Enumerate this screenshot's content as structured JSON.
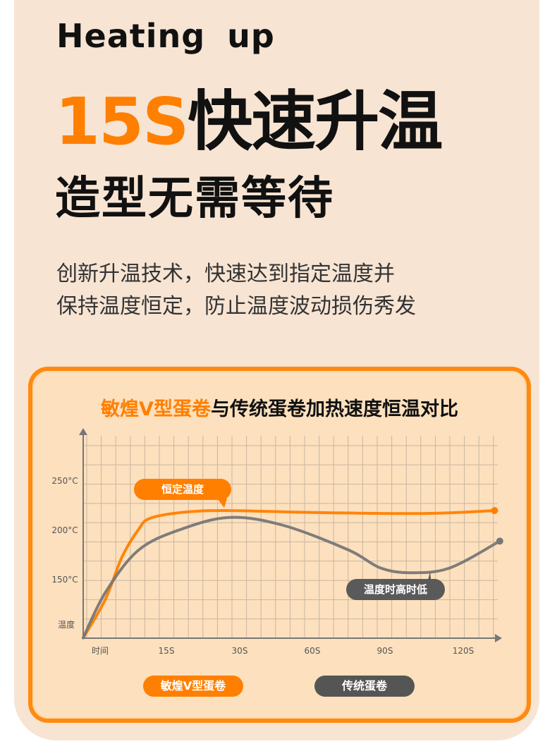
{
  "header": {
    "en_title": "Heating up",
    "title_highlight": "15S",
    "title_rest": "快速升温",
    "subtitle": "造型无需等待",
    "desc_lines": [
      "创新升温技术，快速达到指定温度并",
      "保持温度恒定，防止温度波动损伤秀发"
    ]
  },
  "colors": {
    "accent": "#ff7f00",
    "gray": "#777777",
    "background": "#f7e4d3",
    "card": "#fde0bd"
  },
  "chart_data": {
    "type": "line",
    "title_highlight": "敏煌V型蛋卷",
    "title_rest": "与传统蛋卷加热速度恒温对比",
    "xlabel": "时间",
    "ylabel": "温度",
    "x_ticks": [
      "15S",
      "30S",
      "60S",
      "90S",
      "120S"
    ],
    "x_tick_values": [
      15,
      30,
      60,
      90,
      120
    ],
    "y_ticks": [
      "250°C",
      "200°C",
      "150°C"
    ],
    "y_tick_values": [
      250,
      200,
      150
    ],
    "grid": true,
    "series": [
      {
        "name": "敏煌V型蛋卷",
        "color": "#ff7f00",
        "points": [
          [
            0,
            91
          ],
          [
            4,
            130
          ],
          [
            7,
            173
          ],
          [
            10,
            201
          ],
          [
            12,
            212
          ],
          [
            18,
            218
          ],
          [
            27,
            220
          ],
          [
            60,
            218
          ],
          [
            105,
            217
          ],
          [
            132,
            220
          ]
        ]
      },
      {
        "name": "传统蛋卷",
        "color": "#777777",
        "points": [
          [
            0,
            91
          ],
          [
            4,
            137
          ],
          [
            10,
            180
          ],
          [
            18,
            201
          ],
          [
            28,
            213
          ],
          [
            48,
            205
          ],
          [
            75,
            180
          ],
          [
            88,
            162
          ],
          [
            100,
            157
          ],
          [
            115,
            162
          ],
          [
            134,
            189
          ]
        ]
      }
    ],
    "annotations": [
      "恒定温度",
      "温度时高时低"
    ],
    "legend_placement": "bottom"
  }
}
